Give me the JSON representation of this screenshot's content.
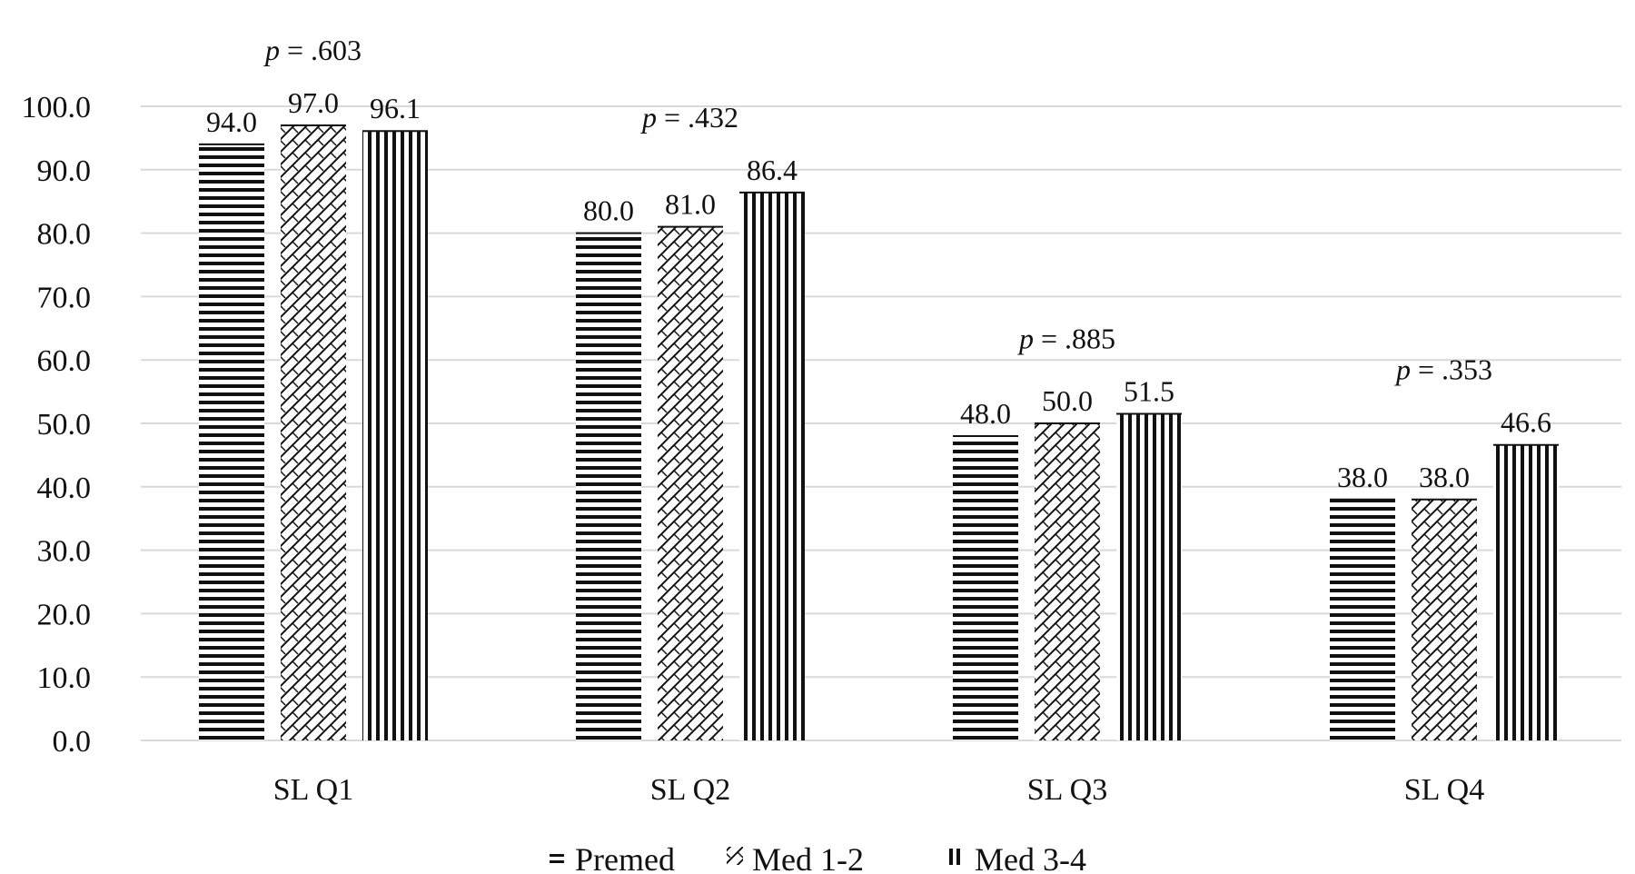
{
  "chart_data": {
    "type": "bar",
    "categories": [
      "SL Q1",
      "SL Q2",
      "SL Q3",
      "SL Q4"
    ],
    "series": [
      {
        "name": "Premed",
        "values": [
          94.0,
          80.0,
          48.0,
          38.0
        ],
        "pattern": "horizontal-lines"
      },
      {
        "name": "Med 1-2",
        "values": [
          97.0,
          81.0,
          50.0,
          38.0
        ],
        "pattern": "crosshatch"
      },
      {
        "name": "Med 3-4",
        "values": [
          96.1,
          86.4,
          51.5,
          46.6
        ],
        "pattern": "vertical-lines"
      }
    ],
    "data_labels": [
      [
        "94.0",
        "80.0",
        "48.0",
        "38.0"
      ],
      [
        "97.0",
        "81.0",
        "50.0",
        "38.0"
      ],
      [
        "96.1",
        "86.4",
        "51.5",
        "46.6"
      ]
    ],
    "p_values": [
      ".603",
      ".432",
      ".885",
      ".353"
    ],
    "p_prefix": "p",
    "p_equals": " = ",
    "y_ticks": [
      "0.0",
      "10.0",
      "20.0",
      "30.0",
      "40.0",
      "50.0",
      "60.0",
      "70.0",
      "80.0",
      "90.0",
      "100.0"
    ],
    "ylim": [
      0,
      100
    ],
    "grid": true,
    "legend_position": "bottom",
    "colors": {
      "bar": "#111111",
      "grid": "#d9d9d9",
      "text": "#111111"
    }
  }
}
